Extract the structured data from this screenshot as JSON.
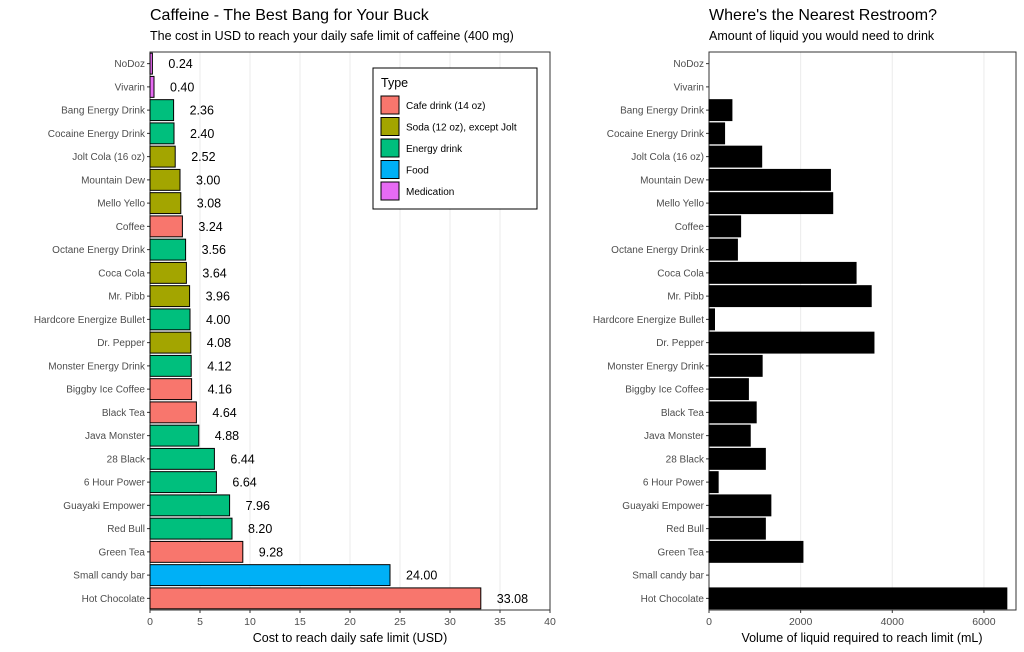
{
  "chart_data": [
    {
      "type": "bar",
      "orientation": "horizontal",
      "title": "Caffeine - The Best Bang for Your Buck",
      "subtitle": "The cost in USD to reach your daily safe limit of caffeine (400 mg)",
      "xlabel": "Cost to reach daily safe limit (USD)",
      "ylabel": "",
      "xlim": [
        0,
        40
      ],
      "xticks": [
        "0",
        "5",
        "10",
        "15",
        "20",
        "25",
        "30",
        "35",
        "40"
      ],
      "grid": "vertical",
      "legend_title": "Type",
      "legend_position": "top-right",
      "legend": [
        {
          "label": "Cafe drink (14 oz)",
          "color": "#f8766d"
        },
        {
          "label": "Soda (12 oz), except Jolt",
          "color": "#a3a500"
        },
        {
          "label": "Energy drink",
          "color": "#00bf7d"
        },
        {
          "label": "Food",
          "color": "#00b0f6"
        },
        {
          "label": "Medication",
          "color": "#e76bf3"
        }
      ],
      "categories": [
        "NoDoz",
        "Vivarin",
        "Bang Energy Drink",
        "Cocaine Energy Drink",
        "Jolt Cola (16 oz)",
        "Mountain Dew",
        "Mello Yello",
        "Coffee",
        "Octane Energy Drink",
        "Coca Cola",
        "Mr. Pibb",
        "Hardcore Energize Bullet",
        "Dr. Pepper",
        "Monster Energy Drink",
        "Biggby Ice Coffee",
        "Black Tea",
        "Java Monster",
        "28 Black",
        "6 Hour Power",
        "Guayaki Empower",
        "Red Bull",
        "Green Tea",
        "Small candy bar",
        "Hot Chocolate"
      ],
      "values": [
        0.24,
        0.4,
        2.36,
        2.4,
        2.52,
        3.0,
        3.08,
        3.24,
        3.56,
        3.64,
        3.96,
        4.0,
        4.08,
        4.12,
        4.16,
        4.64,
        4.88,
        6.44,
        6.64,
        7.96,
        8.2,
        9.28,
        24.0,
        33.08
      ],
      "value_labels": [
        "0.24",
        "0.40",
        "2.36",
        "2.40",
        "2.52",
        "3.00",
        "3.08",
        "3.24",
        "3.56",
        "3.64",
        "3.96",
        "4.00",
        "4.08",
        "4.12",
        "4.16",
        "4.64",
        "4.88",
        "6.44",
        "6.64",
        "7.96",
        "8.20",
        "9.28",
        "24.00",
        "33.08"
      ],
      "types": [
        "Medication",
        "Medication",
        "Energy drink",
        "Energy drink",
        "Soda (12 oz), except Jolt",
        "Soda (12 oz), except Jolt",
        "Soda (12 oz), except Jolt",
        "Cafe drink (14 oz)",
        "Energy drink",
        "Soda (12 oz), except Jolt",
        "Soda (12 oz), except Jolt",
        "Energy drink",
        "Soda (12 oz), except Jolt",
        "Energy drink",
        "Cafe drink (14 oz)",
        "Cafe drink (14 oz)",
        "Energy drink",
        "Energy drink",
        "Energy drink",
        "Energy drink",
        "Energy drink",
        "Cafe drink (14 oz)",
        "Food",
        "Cafe drink (14 oz)"
      ]
    },
    {
      "type": "bar",
      "orientation": "horizontal",
      "title": "Where's the Nearest Restroom?",
      "subtitle": "Amount of liquid you would need to drink",
      "xlabel": "Volume of liquid required to reach limit (mL)",
      "ylabel": "",
      "xlim": [
        0,
        6700
      ],
      "xticks": [
        "0",
        "2000",
        "4000",
        "6000"
      ],
      "grid": "vertical",
      "bar_color": "#000000",
      "categories": [
        "NoDoz",
        "Vivarin",
        "Bang Energy Drink",
        "Cocaine Energy Drink",
        "Jolt Cola (16 oz)",
        "Mountain Dew",
        "Mello Yello",
        "Coffee",
        "Octane Energy Drink",
        "Coca Cola",
        "Mr. Pibb",
        "Hardcore Energize Bullet",
        "Dr. Pepper",
        "Monster Energy Drink",
        "Biggby Ice Coffee",
        "Black Tea",
        "Java Monster",
        "28 Black",
        "6 Hour Power",
        "Guayaki Empower",
        "Red Bull",
        "Green Tea",
        "Small candy bar",
        "Hot Chocolate"
      ],
      "values": [
        0,
        0,
        500,
        340,
        1150,
        2650,
        2700,
        690,
        620,
        3210,
        3540,
        120,
        3600,
        1160,
        860,
        1030,
        900,
        1230,
        200,
        1350,
        1230,
        2050,
        0,
        6500
      ]
    }
  ]
}
